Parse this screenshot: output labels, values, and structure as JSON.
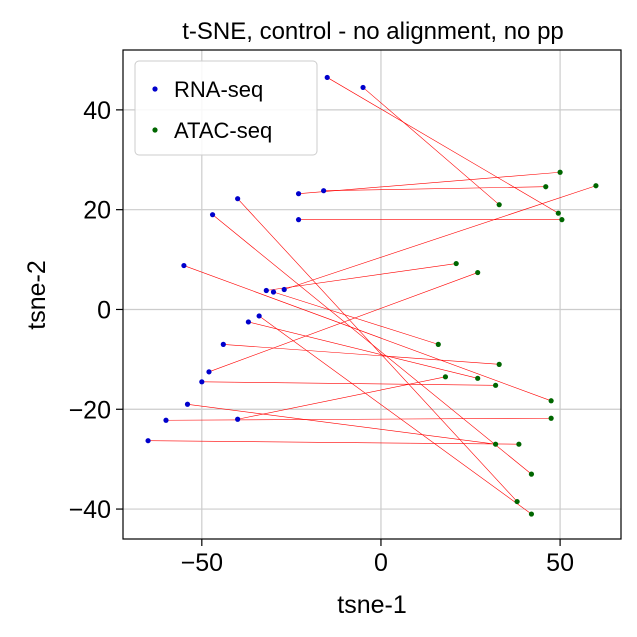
{
  "chart_data": {
    "type": "scatter",
    "title": "t-SNE, control - no alignment, no pp",
    "xlabel": "tsne-1",
    "ylabel": "tsne-2",
    "xlim": [
      -72,
      67
    ],
    "ylim": [
      -46,
      52
    ],
    "xticks": [
      -50,
      0,
      50
    ],
    "yticks": [
      -40,
      -20,
      0,
      20,
      40
    ],
    "xtick_labels": [
      "−50",
      "0",
      "50"
    ],
    "ytick_labels": [
      "−40",
      "−20",
      "0",
      "20",
      "40"
    ],
    "grid": true,
    "legend_position": "top-left",
    "link_color": "#ff0000",
    "series": [
      {
        "name": "RNA-seq",
        "color": "#0000cc",
        "points": [
          [
            -15,
            46.5
          ],
          [
            -5,
            44.5
          ],
          [
            -16,
            23.8
          ],
          [
            -23,
            23.2
          ],
          [
            -40,
            22.2
          ],
          [
            -47,
            19
          ],
          [
            -23,
            18
          ],
          [
            -55,
            8.8
          ],
          [
            -32,
            3.8
          ],
          [
            -30,
            3.5
          ],
          [
            -27,
            4
          ],
          [
            -34,
            -1.3
          ],
          [
            -37,
            -2.5
          ],
          [
            -44,
            -7
          ],
          [
            -48,
            -12.5
          ],
          [
            -50,
            -14.5
          ],
          [
            -54,
            -19
          ],
          [
            -40,
            -22
          ],
          [
            -60,
            -22.2
          ],
          [
            -65,
            -26.3
          ]
        ]
      },
      {
        "name": "ATAC-seq",
        "color": "#006600",
        "points": [
          [
            50,
            27.5
          ],
          [
            46,
            24.6
          ],
          [
            60,
            24.8
          ],
          [
            33,
            21
          ],
          [
            49.5,
            19.3
          ],
          [
            50.5,
            18
          ],
          [
            21,
            9.2
          ],
          [
            27,
            7.4
          ],
          [
            16,
            -7
          ],
          [
            33,
            -11
          ],
          [
            18,
            -13.5
          ],
          [
            27,
            -13.8
          ],
          [
            32,
            -15.2
          ],
          [
            47.5,
            -18.3
          ],
          [
            47.5,
            -21.8
          ],
          [
            32,
            -27
          ],
          [
            38.5,
            -27
          ],
          [
            42,
            -33
          ],
          [
            38,
            -38.5
          ],
          [
            42,
            -41
          ]
        ]
      }
    ],
    "links": [
      [
        0,
        4
      ],
      [
        1,
        3
      ],
      [
        2,
        1
      ],
      [
        3,
        0
      ],
      [
        4,
        18
      ],
      [
        5,
        17
      ],
      [
        6,
        5
      ],
      [
        7,
        13
      ],
      [
        8,
        6
      ],
      [
        9,
        8
      ],
      [
        10,
        2
      ],
      [
        11,
        19
      ],
      [
        12,
        11
      ],
      [
        13,
        9
      ],
      [
        14,
        7
      ],
      [
        15,
        12
      ],
      [
        16,
        15
      ],
      [
        17,
        10
      ],
      [
        18,
        14
      ],
      [
        19,
        16
      ]
    ]
  }
}
